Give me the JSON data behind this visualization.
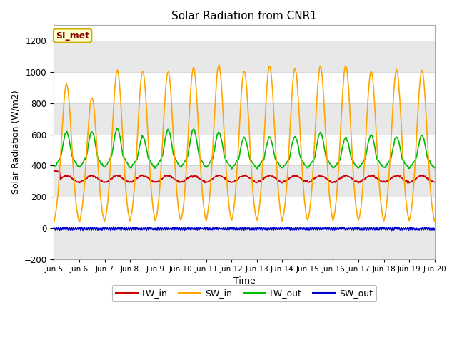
{
  "title": "Solar Radiation from CNR1",
  "xlabel": "Time",
  "ylabel": "Solar Radiation (W/m2)",
  "ylim": [
    -200,
    1300
  ],
  "yticks": [
    -200,
    0,
    200,
    400,
    600,
    800,
    1000,
    1200
  ],
  "date_start": 5,
  "date_end": 20,
  "num_days": 15,
  "fig_facecolor": "#ffffff",
  "plot_facecolor": "#ffffff",
  "band_color": "#e8e8e8",
  "grid_color": "#cccccc",
  "colors": {
    "LW_in": "#cc0000",
    "SW_in": "#ffa500",
    "LW_out": "#00bb00",
    "SW_out": "#0000cc"
  },
  "legend_labels": [
    "LW_in",
    "SW_in",
    "LW_out",
    "SW_out"
  ],
  "annotation_text": "SI_met",
  "annotation_color": "#8b0000",
  "annotation_bg": "#ffffcc",
  "annotation_border": "#ccaa00",
  "figsize": [
    6.4,
    4.8
  ],
  "dpi": 100
}
